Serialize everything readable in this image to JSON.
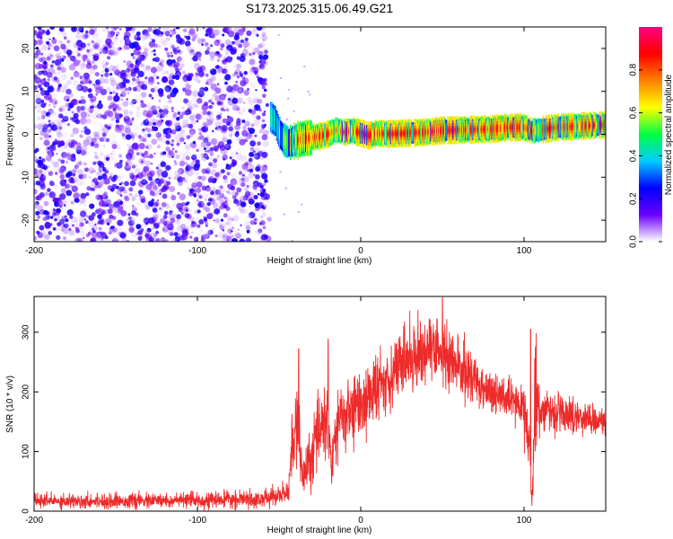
{
  "title": "S173.2025.315.06.49.G21",
  "colors": {
    "snr_line": "#ee2a2a",
    "noise_dot": "#7a1cf0",
    "background": "#ffffff"
  },
  "chart_data": [
    {
      "type": "heatmap",
      "name": "spectrogram",
      "xlabel": "Height of straight line (km)",
      "ylabel": "Frequency (Hz)",
      "xlim": [
        -200,
        150
      ],
      "ylim": [
        -25,
        25
      ],
      "xticks": [
        "-200",
        "-100",
        "0",
        "100"
      ],
      "xtick_values": [
        -200,
        -100,
        0,
        100
      ],
      "yticks": [
        "20",
        "10",
        "0",
        "-10",
        "-20"
      ],
      "ytick_values": [
        20,
        10,
        0,
        -10,
        -20
      ],
      "noise_region_x": [
        -200,
        -58
      ],
      "signal_start_x": -55,
      "signal_ridge": [
        {
          "x": -55,
          "freq": 4.0,
          "amp": 0.35
        },
        {
          "x": -52,
          "freq": 3.0,
          "amp": 0.4
        },
        {
          "x": -50,
          "freq": 0.5,
          "amp": 0.45
        },
        {
          "x": -47,
          "freq": -1.2,
          "amp": 0.5
        },
        {
          "x": -44,
          "freq": -2.0,
          "amp": 0.6
        },
        {
          "x": -40,
          "freq": -1.5,
          "amp": 0.65
        },
        {
          "x": -35,
          "freq": -1.0,
          "amp": 0.7
        },
        {
          "x": -30,
          "freq": -0.8,
          "amp": 0.7
        },
        {
          "x": -25,
          "freq": -0.4,
          "amp": 0.72
        },
        {
          "x": -20,
          "freq": 0.0,
          "amp": 0.75
        },
        {
          "x": -15,
          "freq": 1.0,
          "amp": 0.75
        },
        {
          "x": -10,
          "freq": 0.5,
          "amp": 0.78
        },
        {
          "x": -5,
          "freq": 0.8,
          "amp": 0.8
        },
        {
          "x": 0,
          "freq": 0.3,
          "amp": 0.8
        },
        {
          "x": 5,
          "freq": -0.3,
          "amp": 0.82
        },
        {
          "x": 10,
          "freq": 0.2,
          "amp": 0.85
        },
        {
          "x": 20,
          "freq": 0.1,
          "amp": 0.88
        },
        {
          "x": 30,
          "freq": 0.3,
          "amp": 0.9
        },
        {
          "x": 40,
          "freq": 0.5,
          "amp": 0.92
        },
        {
          "x": 50,
          "freq": 0.9,
          "amp": 0.93
        },
        {
          "x": 60,
          "freq": 1.0,
          "amp": 0.92
        },
        {
          "x": 70,
          "freq": 1.1,
          "amp": 0.9
        },
        {
          "x": 80,
          "freq": 1.2,
          "amp": 0.88
        },
        {
          "x": 90,
          "freq": 1.6,
          "amp": 0.85
        },
        {
          "x": 100,
          "freq": 1.6,
          "amp": 0.8
        },
        {
          "x": 105,
          "freq": 0.8,
          "amp": 0.6
        },
        {
          "x": 110,
          "freq": 1.0,
          "amp": 0.75
        },
        {
          "x": 120,
          "freq": 1.6,
          "amp": 0.78
        },
        {
          "x": 130,
          "freq": 1.8,
          "amp": 0.78
        },
        {
          "x": 140,
          "freq": 2.0,
          "amp": 0.78
        },
        {
          "x": 150,
          "freq": 2.2,
          "amp": 0.78
        }
      ],
      "colorbar": {
        "label": "Normalized spectral amplitude",
        "range": [
          0,
          1
        ],
        "ticks": [
          "0.0",
          "0.2",
          "0.4",
          "0.6",
          "0.8"
        ],
        "tick_values": [
          0,
          0.2,
          0.4,
          0.6,
          0.8
        ],
        "colormap": [
          "#ffffff",
          "#6a00ff",
          "#0000ff",
          "#00ccff",
          "#00ff40",
          "#ffff00",
          "#ff8000",
          "#ff0000",
          "#ff0080"
        ]
      }
    },
    {
      "type": "line",
      "name": "snr",
      "xlabel": "Height of straight line (km)",
      "ylabel": "SNR (10 * v/v)",
      "xlim": [
        -200,
        150
      ],
      "ylim": [
        0,
        360
      ],
      "xticks": [
        "-200",
        "-100",
        "0",
        "100"
      ],
      "xtick_values": [
        -200,
        -100,
        0,
        100
      ],
      "yticks": [
        "300",
        "200",
        "100",
        "0"
      ],
      "ytick_values": [
        300,
        200,
        100,
        0
      ],
      "envelope": {
        "x": [
          -200,
          -150,
          -100,
          -60,
          -45,
          -42,
          -38,
          -36,
          -30,
          -25,
          -20,
          -18,
          -15,
          -10,
          0,
          10,
          20,
          30,
          40,
          50,
          60,
          70,
          80,
          90,
          100,
          103,
          105,
          107,
          110,
          120,
          130,
          140,
          150
        ],
        "mean": [
          17,
          17,
          18,
          20,
          30,
          100,
          160,
          50,
          90,
          150,
          160,
          70,
          140,
          160,
          180,
          205,
          235,
          260,
          270,
          265,
          240,
          220,
          200,
          185,
          175,
          120,
          20,
          200,
          170,
          165,
          160,
          155,
          150
        ],
        "spread": [
          10,
          10,
          10,
          12,
          15,
          50,
          60,
          30,
          40,
          50,
          60,
          30,
          50,
          50,
          50,
          45,
          45,
          45,
          45,
          50,
          40,
          35,
          30,
          28,
          25,
          40,
          20,
          80,
          30,
          25,
          25,
          20,
          20
        ]
      },
      "peaks": [
        {
          "x": -38,
          "y": 272
        },
        {
          "x": -20,
          "y": 288
        },
        {
          "x": 50,
          "y": 358
        },
        {
          "x": 42,
          "y": 322
        },
        {
          "x": 104,
          "y": 305
        }
      ]
    }
  ]
}
